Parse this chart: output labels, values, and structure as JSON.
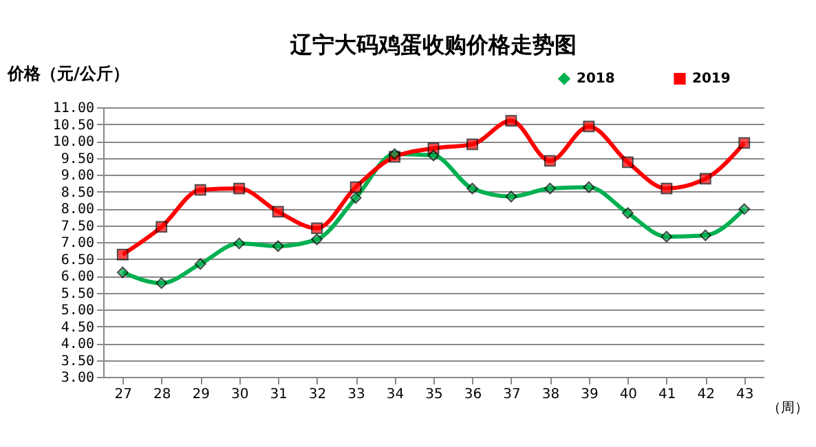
{
  "chart_data": {
    "type": "line",
    "title": "辽宁大码鸡蛋收购价格走势图",
    "ylabel": "价格（元/公斤）",
    "xlabel": "（周）",
    "categories": [
      "27",
      "28",
      "29",
      "30",
      "31",
      "32",
      "33",
      "34",
      "35",
      "36",
      "37",
      "38",
      "39",
      "40",
      "41",
      "42",
      "43"
    ],
    "ylim": [
      3,
      11
    ],
    "yticks": [
      {
        "value": 3,
        "label": "3.00"
      },
      {
        "value": 3.5,
        "label": "3.50"
      },
      {
        "value": 4,
        "label": "4.00"
      },
      {
        "value": 4.5,
        "label": "4.50"
      },
      {
        "value": 5,
        "label": "5.00"
      },
      {
        "value": 5.5,
        "label": "5.50"
      },
      {
        "value": 6,
        "label": "6.00"
      },
      {
        "value": 6.5,
        "label": "6.50"
      },
      {
        "value": 7,
        "label": "7.00"
      },
      {
        "value": 7.5,
        "label": "7.50"
      },
      {
        "value": 8,
        "label": "8.00"
      },
      {
        "value": 8.5,
        "label": "8.50"
      },
      {
        "value": 9,
        "label": "9.00"
      },
      {
        "value": 9.5,
        "label": "9.50"
      },
      {
        "value": 10,
        "label": "10.00"
      },
      {
        "value": 10.5,
        "label": "10.50"
      },
      {
        "value": 11,
        "label": "11.00"
      }
    ],
    "grid": "y",
    "legend": "top right",
    "series": [
      {
        "name": "2018",
        "color": "#00b050",
        "marker": "diamond",
        "values": [
          6.1,
          5.78,
          6.35,
          6.96,
          6.88,
          7.08,
          8.31,
          9.61,
          9.57,
          8.59,
          8.35,
          8.59,
          8.63,
          7.86,
          7.16,
          7.2,
          7.98
        ]
      },
      {
        "name": "2019",
        "color": "#ff0000",
        "marker": "square",
        "values": [
          6.63,
          7.45,
          8.55,
          8.59,
          7.9,
          7.41,
          8.63,
          9.53,
          9.78,
          9.9,
          10.6,
          9.41,
          10.43,
          9.37,
          8.59,
          8.88,
          9.94
        ]
      }
    ]
  }
}
